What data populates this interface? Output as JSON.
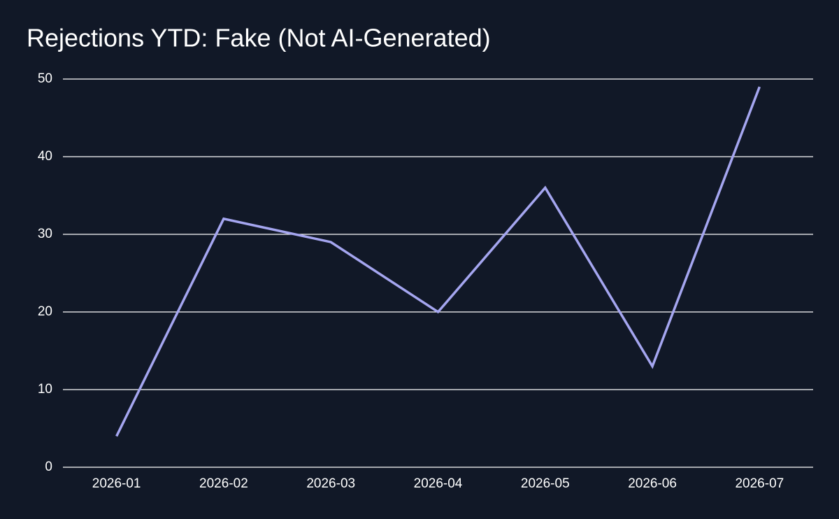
{
  "chart_data": {
    "type": "line",
    "title": "Rejections YTD: Fake (Not AI-Generated)",
    "categories": [
      "2026-01",
      "2026-02",
      "2026-03",
      "2026-04",
      "2026-05",
      "2026-06",
      "2026-07"
    ],
    "values": [
      4,
      32,
      29,
      20,
      36,
      13,
      49
    ],
    "color": "#a5a6f0",
    "ylim": [
      0,
      50
    ],
    "yticks": [
      0,
      10,
      20,
      30,
      40,
      50
    ],
    "grid": true
  }
}
